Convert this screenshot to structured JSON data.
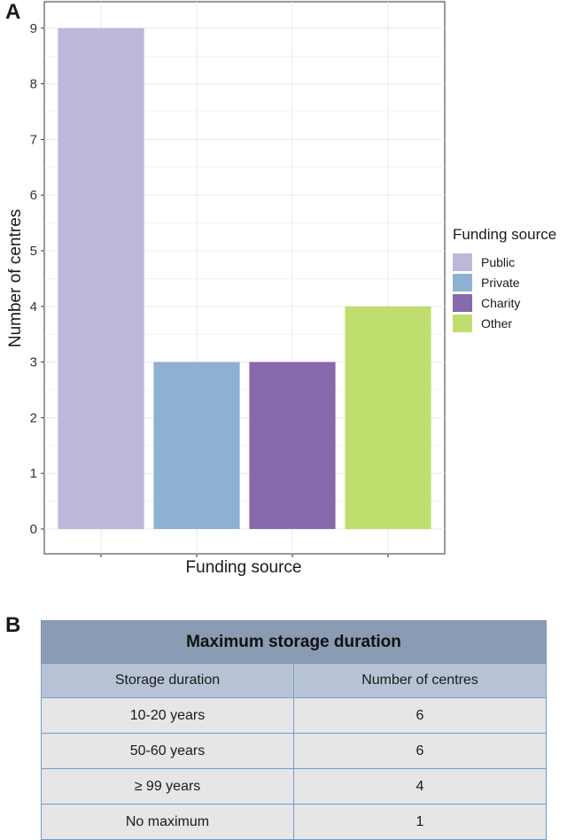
{
  "panel_labels": {
    "a": "A",
    "b": "B"
  },
  "chart_data": {
    "type": "bar",
    "categories": [
      "Public",
      "Private",
      "Charity",
      "Other"
    ],
    "values": [
      9,
      3,
      3,
      4
    ],
    "xlabel": "Funding source",
    "ylabel": "Number of centres",
    "ylim": [
      0,
      9.5
    ],
    "yticks": [
      "0",
      "1",
      "2",
      "3",
      "4",
      "5",
      "6",
      "7",
      "8",
      "9"
    ],
    "grid": true,
    "legend": {
      "title": "Funding source",
      "placement": "right"
    },
    "colors": [
      "#bcb8da",
      "#8eb0d3",
      "#8769ad",
      "#c0de6e"
    ]
  },
  "table": {
    "title": "Maximum storage duration",
    "headers": [
      "Storage duration",
      "Number of centres"
    ],
    "rows": [
      [
        "10-20 years",
        "6"
      ],
      [
        "50-60 years",
        "6"
      ],
      [
        "≥ 99 years",
        "4"
      ],
      [
        "No maximum",
        "1"
      ]
    ]
  }
}
